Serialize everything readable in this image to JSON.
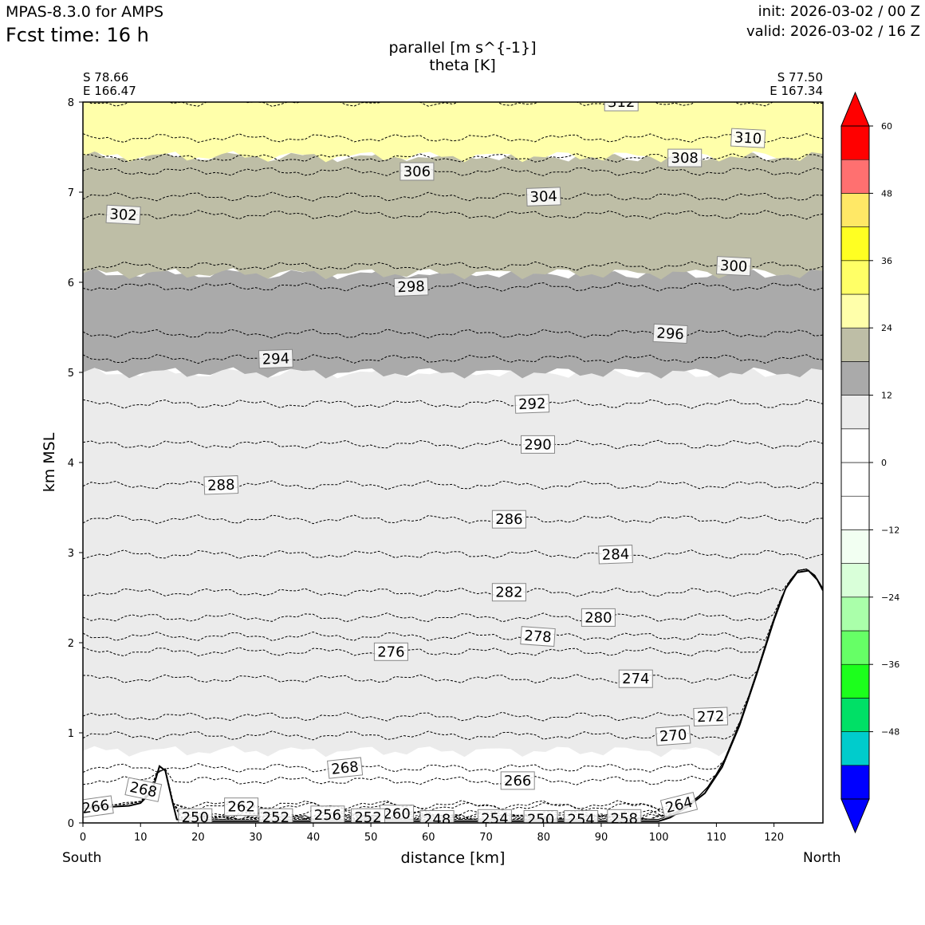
{
  "header": {
    "model": "MPAS-8.3.0 for AMPS",
    "fcst_time": "Fcst time:   16 h",
    "init": "init: 2026-03-02 / 00 Z",
    "valid": "valid: 2026-03-02 / 16 Z"
  },
  "chart_data": {
    "type": "cross-section contour",
    "title": "parallel [m s^{-1}]",
    "subtitle": "theta [K]",
    "xlabel": "distance [km]",
    "ylabel": "km MSL",
    "xlim": [
      0,
      128.5
    ],
    "ylim": [
      0,
      8
    ],
    "x_ticks": [
      0,
      10,
      20,
      30,
      40,
      50,
      60,
      70,
      80,
      90,
      100,
      110,
      120
    ],
    "y_ticks": [
      0,
      1,
      2,
      3,
      4,
      5,
      6,
      7,
      8
    ],
    "start_point": {
      "lat": "S 78.66",
      "lon": "E 166.47",
      "direction": "South"
    },
    "end_point": {
      "lat": "S 77.50",
      "lon": "E 167.34",
      "direction": "North"
    },
    "colorbar": {
      "levels": [
        -60,
        -54,
        -48,
        -42,
        -36,
        -30,
        -24,
        -18,
        -12,
        -6,
        0,
        6,
        12,
        18,
        24,
        30,
        36,
        42,
        48,
        54,
        60
      ],
      "tick_labels": [
        "60",
        "48",
        "36",
        "24",
        "12",
        "0",
        "−12",
        "−24",
        "−36",
        "−48"
      ],
      "tick_values": [
        60,
        48,
        36,
        24,
        12,
        0,
        -12,
        -24,
        -36,
        -48
      ],
      "colors": [
        "#0000ff",
        "#00cccc",
        "#00e066",
        "#1cff1c",
        "#66ff66",
        "#aaffaa",
        "#d9ffd9",
        "#f2fff2",
        "#ffffff",
        "#ffffff",
        "#ffffff",
        "#ebebeb",
        "#aaaaaa",
        "#bebea6",
        "#ffffaa",
        "#ffff66",
        "#ffff22",
        "#ffe866",
        "#ff7070",
        "#ff0000"
      ],
      "extend": "both"
    },
    "shaded_regions": [
      {
        "range": "6 to 12",
        "color": "#ebebeb",
        "from_km": 0.8,
        "to_km": 5.0
      },
      {
        "range": "12 to 18",
        "color": "#aaaaaa",
        "from_km": 5.0,
        "to_km": 6.1
      },
      {
        "range": "18 to 24",
        "color": "#bebea6",
        "from_km": 6.1,
        "to_km": 7.4
      },
      {
        "range": "24 to 30",
        "color": "#ffffaa",
        "from_km": 7.4,
        "to_km": 8.0
      }
    ],
    "terrain": [
      [
        0,
        0.16
      ],
      [
        8,
        0.19
      ],
      [
        10,
        0.22
      ],
      [
        12,
        0.35
      ],
      [
        13.3,
        0.63
      ],
      [
        14.3,
        0.58
      ],
      [
        15.5,
        0.25
      ],
      [
        16.3,
        0.04
      ],
      [
        18,
        0.02
      ],
      [
        100,
        0.02
      ],
      [
        102,
        0.06
      ],
      [
        105,
        0.18
      ],
      [
        108,
        0.33
      ],
      [
        111,
        0.62
      ],
      [
        114,
        1.08
      ],
      [
        117,
        1.65
      ],
      [
        120,
        2.25
      ],
      [
        122,
        2.6
      ],
      [
        124,
        2.78
      ],
      [
        126,
        2.8
      ],
      [
        127.5,
        2.7
      ],
      [
        128.5,
        2.58
      ]
    ],
    "isentropes": [
      {
        "label": "312",
        "x": 93.5,
        "y": 8.0,
        "angle": 0
      },
      {
        "label": "310",
        "x": 115.5,
        "y": 7.6,
        "angle": 3
      },
      {
        "label": "308",
        "x": 104.5,
        "y": 7.38,
        "angle": 0
      },
      {
        "label": "306",
        "x": 58,
        "y": 7.23,
        "angle": 0
      },
      {
        "label": "304",
        "x": 80,
        "y": 6.95,
        "angle": -2
      },
      {
        "label": "302",
        "x": 7,
        "y": 6.75,
        "angle": 3
      },
      {
        "label": "300",
        "x": 113,
        "y": 6.18,
        "angle": 3
      },
      {
        "label": "298",
        "x": 57,
        "y": 5.95,
        "angle": -2
      },
      {
        "label": "296",
        "x": 102,
        "y": 5.43,
        "angle": 3
      },
      {
        "label": "294",
        "x": 33.5,
        "y": 5.15,
        "angle": -2
      },
      {
        "label": "292",
        "x": 78,
        "y": 4.65,
        "angle": -2
      },
      {
        "label": "290",
        "x": 79,
        "y": 4.2,
        "angle": 0
      },
      {
        "label": "288",
        "x": 24,
        "y": 3.75,
        "angle": -2
      },
      {
        "label": "286",
        "x": 74,
        "y": 3.37,
        "angle": 0
      },
      {
        "label": "284",
        "x": 92.5,
        "y": 2.98,
        "angle": -2
      },
      {
        "label": "282",
        "x": 74,
        "y": 2.56,
        "angle": 0
      },
      {
        "label": "280",
        "x": 89.5,
        "y": 2.28,
        "angle": 0
      },
      {
        "label": "278",
        "x": 79,
        "y": 2.07,
        "angle": 4
      },
      {
        "label": "276",
        "x": 53.5,
        "y": 1.9,
        "angle": 0
      },
      {
        "label": "274",
        "x": 96,
        "y": 1.6,
        "angle": 0
      },
      {
        "label": "272",
        "x": 109,
        "y": 1.18,
        "angle": -2
      },
      {
        "label": "270",
        "x": 102.5,
        "y": 0.97,
        "angle": -4
      },
      {
        "label": "268",
        "x": 45.5,
        "y": 0.61,
        "angle": -6
      },
      {
        "label": "268",
        "x": 10.5,
        "y": 0.37,
        "angle": 12
      },
      {
        "label": "266",
        "x": 75.5,
        "y": 0.47,
        "angle": 0
      },
      {
        "label": "266",
        "x": 2.2,
        "y": 0.18,
        "angle": -8
      },
      {
        "label": "264",
        "x": 103.5,
        "y": 0.2,
        "angle": -14
      },
      {
        "label": "262",
        "x": 27.5,
        "y": 0.18,
        "angle": 0
      },
      {
        "label": "260",
        "x": 54.5,
        "y": 0.1,
        "angle": 0
      },
      {
        "label": "258",
        "x": 94,
        "y": 0.05,
        "angle": 0
      },
      {
        "label": "256",
        "x": 42.5,
        "y": 0.09,
        "angle": 0
      },
      {
        "label": "254",
        "x": 71.5,
        "y": 0.05,
        "angle": 0
      },
      {
        "label": "254",
        "x": 86.5,
        "y": 0.04,
        "angle": 0
      },
      {
        "label": "252",
        "x": 33.5,
        "y": 0.06,
        "angle": 0
      },
      {
        "label": "252",
        "x": 49.5,
        "y": 0.06,
        "angle": 0
      },
      {
        "label": "250",
        "x": 19.5,
        "y": 0.06,
        "angle": 0
      },
      {
        "label": "250",
        "x": 79.5,
        "y": 0.04,
        "angle": 0
      },
      {
        "label": "248",
        "x": 61.5,
        "y": 0.04,
        "angle": 0
      }
    ]
  }
}
